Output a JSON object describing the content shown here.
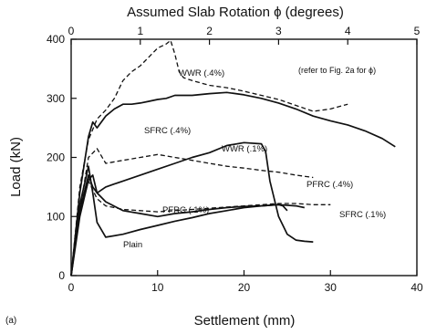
{
  "chart_data": {
    "type": "line",
    "panel_label": "(a)",
    "title": "Assumed Slab Rotation ϕ (degrees)",
    "xlabel": "Settlement (mm)",
    "ylabel": "Load (kN)",
    "xlim": [
      0,
      40
    ],
    "ylim": [
      0,
      400
    ],
    "x_ticks": [
      0,
      10,
      20,
      30,
      40
    ],
    "y_ticks": [
      0,
      100,
      200,
      300,
      400
    ],
    "top_axis": {
      "label": "Assumed Slab Rotation ϕ (degrees)",
      "ticks": [
        0,
        1,
        2,
        3,
        4,
        5
      ],
      "range": [
        0,
        5
      ]
    },
    "note": "(refer to Fig. 2a for ϕ)",
    "grid": false,
    "series": [
      {
        "name": "WWR (.4%)",
        "style": "dashed",
        "x": [
          0,
          1,
          2,
          3,
          4,
          5,
          6,
          7,
          8,
          9,
          10,
          11,
          11.5,
          12,
          12.5,
          13,
          14,
          16,
          18,
          20,
          22,
          24,
          26,
          28,
          30,
          32
        ],
        "y": [
          0,
          150,
          230,
          265,
          280,
          300,
          330,
          345,
          355,
          370,
          385,
          392,
          398,
          375,
          345,
          335,
          330,
          322,
          318,
          312,
          305,
          298,
          288,
          278,
          282,
          290
        ]
      },
      {
        "name": "SFRC (.4%)",
        "style": "solid",
        "x": [
          0,
          1,
          2,
          2.5,
          3,
          4,
          5,
          6,
          7,
          8,
          9,
          10,
          11,
          12,
          14,
          16,
          18,
          20,
          22,
          24,
          26,
          28,
          30,
          32,
          34,
          36,
          37.5
        ],
        "y": [
          0,
          140,
          235,
          260,
          250,
          270,
          282,
          290,
          290,
          292,
          295,
          298,
          300,
          305,
          305,
          308,
          310,
          306,
          300,
          292,
          282,
          270,
          262,
          255,
          245,
          232,
          218
        ]
      },
      {
        "name": "WWR (.1%)",
        "style": "solid",
        "x": [
          0,
          1,
          2,
          2.5,
          3,
          4,
          5,
          6,
          8,
          10,
          12,
          14,
          16,
          18,
          20,
          22,
          22.5,
          23,
          24,
          25,
          26,
          27,
          28
        ],
        "y": [
          0,
          110,
          170,
          150,
          140,
          150,
          155,
          160,
          170,
          180,
          190,
          200,
          208,
          220,
          225,
          223,
          210,
          160,
          100,
          70,
          60,
          58,
          57
        ]
      },
      {
        "name": "PFRC (.4%)",
        "style": "dashed",
        "x": [
          0,
          1,
          2,
          3,
          4,
          6,
          8,
          10,
          12,
          14,
          16,
          18,
          20,
          22,
          24,
          26,
          28
        ],
        "y": [
          0,
          110,
          200,
          215,
          190,
          195,
          200,
          205,
          200,
          195,
          190,
          185,
          182,
          178,
          175,
          170,
          166
        ]
      },
      {
        "name": "PFRC (.1%)",
        "style": "solid",
        "x": [
          0,
          1,
          2,
          2.5,
          3,
          4,
          6,
          8,
          10,
          12,
          14,
          16,
          18,
          20,
          22,
          24,
          26,
          27
        ],
        "y": [
          0,
          100,
          162,
          170,
          140,
          125,
          110,
          105,
          100,
          105,
          108,
          112,
          115,
          117,
          118,
          120,
          118,
          115
        ]
      },
      {
        "name": "SFRC (.1%)",
        "style": "dashed",
        "x": [
          0,
          1,
          2,
          3,
          4,
          6,
          8,
          10,
          12,
          14,
          16,
          18,
          20,
          22,
          24,
          26,
          28,
          30
        ],
        "y": [
          0,
          105,
          160,
          130,
          118,
          112,
          110,
          108,
          110,
          112,
          114,
          116,
          118,
          120,
          122,
          122,
          120,
          120
        ]
      },
      {
        "name": "Plain",
        "style": "solid",
        "x": [
          0,
          1,
          2,
          2.5,
          3,
          4,
          6,
          8,
          10,
          12,
          14,
          16,
          18,
          20,
          22,
          24,
          24.5,
          25
        ],
        "y": [
          0,
          120,
          185,
          140,
          90,
          65,
          70,
          78,
          85,
          92,
          98,
          105,
          110,
          115,
          118,
          120,
          118,
          110
        ]
      }
    ],
    "series_labels": [
      "WWR (.4%)",
      "SFRC (.4%)",
      "WWR (.1%)",
      "PFRC (.4%)",
      "PFRC (.1%)",
      "SFRC (.1%)",
      "Plain"
    ]
  }
}
